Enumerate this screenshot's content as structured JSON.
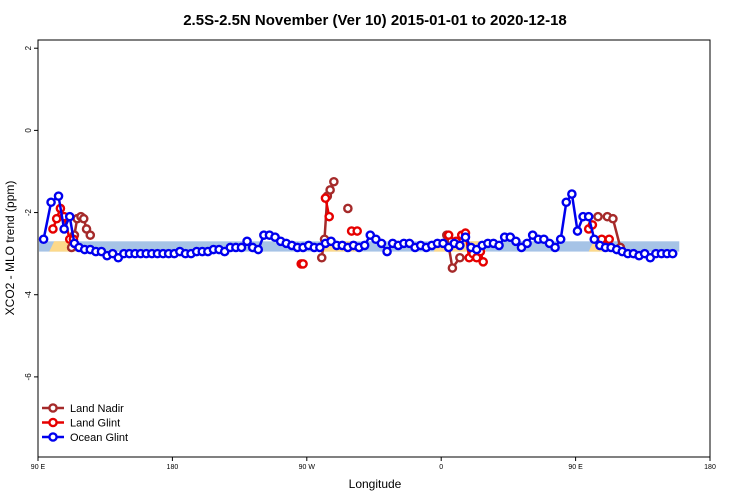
{
  "chart_data": {
    "type": "line",
    "title": "2.5S-2.5N November (Ver 10)   2015-01-01 to 2020-12-18",
    "xlabel": "Longitude",
    "ylabel": "XCO2 - MLO trend (ppm)",
    "xlim": [
      90,
      450
    ],
    "ylim": [
      -8,
      2.2
    ],
    "x_ticks": [
      {
        "value": 90,
        "label": "90 E"
      },
      {
        "value": 162,
        "label": "180"
      },
      {
        "value": 234,
        "label": "90 W"
      },
      {
        "value": 306,
        "label": "0"
      },
      {
        "value": 378,
        "label": "90 E"
      },
      {
        "value": 450,
        "label": "180"
      }
    ],
    "y_ticks": [
      {
        "value": -6,
        "label": "-6"
      },
      {
        "value": -4,
        "label": "-4"
      },
      {
        "value": -2,
        "label": "-2"
      },
      {
        "value": 0,
        "label": "0"
      },
      {
        "value": 2,
        "label": "2"
      }
    ],
    "legend_position": "bottom-left",
    "background_band": {
      "y_range": [
        -2.95,
        -2.7
      ],
      "ocean_color": "#a6c3e6",
      "land_color": "#fdd98a",
      "land_segments": [
        [
          96,
          113
        ],
        [
          241,
          262
        ],
        [
          302,
          330
        ],
        [
          385,
          397
        ]
      ]
    },
    "series": [
      {
        "name": "Land Nadir",
        "color": "#a52a2a",
        "points": [
          [
            108,
            -2.85
          ],
          [
            109.5,
            -2.55
          ],
          [
            111,
            -2.15
          ],
          [
            113,
            -2.1
          ],
          [
            114.5,
            -2.15
          ],
          [
            116,
            -2.4
          ],
          [
            118,
            -2.55
          ],
          [
            242,
            -3.1
          ],
          [
            243.5,
            -2.65
          ],
          [
            245,
            -1.6
          ],
          [
            246.5,
            -1.45
          ],
          [
            248.5,
            -1.25
          ],
          [
            256,
            -1.9
          ],
          [
            309,
            -2.55
          ],
          [
            312,
            -3.35
          ],
          [
            316,
            -3.1
          ],
          [
            390,
            -2.1
          ],
          [
            395,
            -2.1
          ],
          [
            398,
            -2.15
          ],
          [
            402,
            -2.85
          ]
        ]
      },
      {
        "name": "Land Glint",
        "color": "#e60000",
        "points": [
          [
            98,
            -2.4
          ],
          [
            100,
            -2.15
          ],
          [
            102,
            -1.9
          ],
          [
            104,
            -2.1
          ],
          [
            107,
            -2.65
          ],
          [
            109,
            -2.65
          ],
          [
            231,
            -3.25
          ],
          [
            232,
            -3.25
          ],
          [
            244,
            -1.65
          ],
          [
            246,
            -2.1
          ],
          [
            258,
            -2.45
          ],
          [
            261,
            -2.45
          ],
          [
            310,
            -2.55
          ],
          [
            314,
            -2.7
          ],
          [
            317,
            -2.55
          ],
          [
            319,
            -2.5
          ],
          [
            321,
            -3.1
          ],
          [
            323,
            -3.0
          ],
          [
            325,
            -3.1
          ],
          [
            327,
            -2.95
          ],
          [
            328.5,
            -3.2
          ],
          [
            385,
            -2.4
          ],
          [
            387,
            -2.3
          ],
          [
            392,
            -2.65
          ],
          [
            394,
            -2.8
          ],
          [
            396,
            -2.65
          ]
        ]
      },
      {
        "name": "Ocean Glint",
        "color": "#0000ee",
        "points": [
          [
            93,
            -2.65
          ],
          [
            97,
            -1.75
          ],
          [
            101,
            -1.6
          ],
          [
            104,
            -2.4
          ],
          [
            107,
            -2.1
          ],
          [
            109.5,
            -2.75
          ],
          [
            112,
            -2.85
          ],
          [
            115,
            -2.9
          ],
          [
            118,
            -2.9
          ],
          [
            121,
            -2.95
          ],
          [
            124,
            -2.95
          ],
          [
            127,
            -3.05
          ],
          [
            130,
            -3.0
          ],
          [
            133,
            -3.1
          ],
          [
            136,
            -3.0
          ],
          [
            139,
            -3.0
          ],
          [
            142,
            -3.0
          ],
          [
            145,
            -3.0
          ],
          [
            148,
            -3.0
          ],
          [
            151,
            -3.0
          ],
          [
            154,
            -3.0
          ],
          [
            157,
            -3.0
          ],
          [
            160,
            -3.0
          ],
          [
            163,
            -3.0
          ],
          [
            166,
            -2.95
          ],
          [
            169,
            -3.0
          ],
          [
            172,
            -3.0
          ],
          [
            175,
            -2.95
          ],
          [
            178,
            -2.95
          ],
          [
            181,
            -2.95
          ],
          [
            184,
            -2.9
          ],
          [
            187,
            -2.9
          ],
          [
            190,
            -2.95
          ],
          [
            193,
            -2.85
          ],
          [
            196,
            -2.85
          ],
          [
            199,
            -2.85
          ],
          [
            202,
            -2.7
          ],
          [
            205,
            -2.85
          ],
          [
            208,
            -2.9
          ],
          [
            211,
            -2.55
          ],
          [
            214,
            -2.55
          ],
          [
            217,
            -2.6
          ],
          [
            220,
            -2.7
          ],
          [
            223,
            -2.75
          ],
          [
            226,
            -2.8
          ],
          [
            229,
            -2.85
          ],
          [
            232,
            -2.85
          ],
          [
            235,
            -2.8
          ],
          [
            238,
            -2.85
          ],
          [
            241,
            -2.85
          ],
          [
            244,
            -2.75
          ],
          [
            247,
            -2.7
          ],
          [
            250,
            -2.8
          ],
          [
            253,
            -2.8
          ],
          [
            256,
            -2.85
          ],
          [
            259,
            -2.8
          ],
          [
            262,
            -2.85
          ],
          [
            265,
            -2.8
          ],
          [
            268,
            -2.55
          ],
          [
            271,
            -2.65
          ],
          [
            274,
            -2.75
          ],
          [
            277,
            -2.95
          ],
          [
            280,
            -2.75
          ],
          [
            283,
            -2.8
          ],
          [
            286,
            -2.75
          ],
          [
            289,
            -2.75
          ],
          [
            292,
            -2.85
          ],
          [
            295,
            -2.8
          ],
          [
            298,
            -2.85
          ],
          [
            301,
            -2.8
          ],
          [
            304,
            -2.75
          ],
          [
            307,
            -2.75
          ],
          [
            310,
            -2.85
          ],
          [
            313,
            -2.75
          ],
          [
            316,
            -2.8
          ],
          [
            319,
            -2.6
          ],
          [
            322,
            -2.85
          ],
          [
            325,
            -2.9
          ],
          [
            328,
            -2.8
          ],
          [
            331,
            -2.75
          ],
          [
            334,
            -2.75
          ],
          [
            337,
            -2.8
          ],
          [
            340,
            -2.6
          ],
          [
            343,
            -2.6
          ],
          [
            346,
            -2.7
          ],
          [
            349,
            -2.85
          ],
          [
            352,
            -2.75
          ],
          [
            355,
            -2.55
          ],
          [
            358,
            -2.65
          ],
          [
            361,
            -2.65
          ],
          [
            364,
            -2.75
          ],
          [
            367,
            -2.85
          ],
          [
            370,
            -2.65
          ],
          [
            373,
            -1.75
          ],
          [
            376,
            -1.55
          ],
          [
            379,
            -2.45
          ],
          [
            382,
            -2.1
          ],
          [
            385,
            -2.1
          ],
          [
            388,
            -2.65
          ],
          [
            391,
            -2.8
          ],
          [
            394,
            -2.85
          ],
          [
            397,
            -2.85
          ],
          [
            400,
            -2.9
          ],
          [
            403,
            -2.95
          ],
          [
            406,
            -3.0
          ],
          [
            409,
            -3.0
          ],
          [
            412,
            -3.05
          ],
          [
            415,
            -3.0
          ],
          [
            418,
            -3.1
          ],
          [
            421,
            -3.0
          ],
          [
            424,
            -3.0
          ],
          [
            427,
            -3.0
          ],
          [
            430,
            -3.0
          ]
        ]
      }
    ]
  }
}
